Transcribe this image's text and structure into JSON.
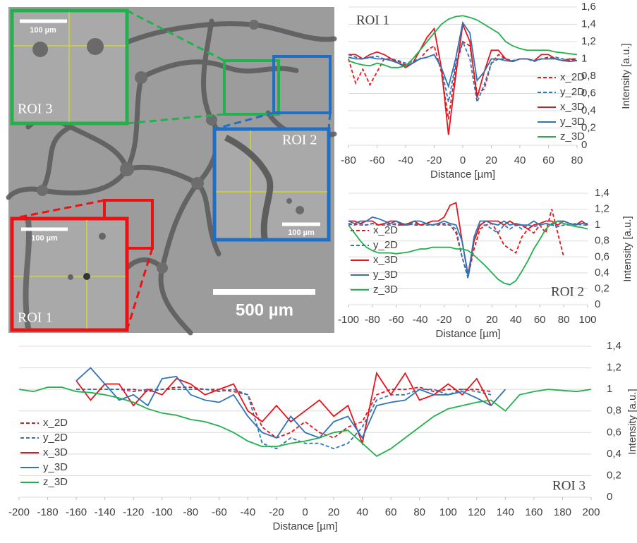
{
  "image": {
    "insets": [
      {
        "label": "ROI 3",
        "scale": "100 µm"
      },
      {
        "label": "ROI 2",
        "scale": "100 µm"
      },
      {
        "label": "ROI 1",
        "scale": "100 µm"
      }
    ],
    "scale_bar": "500 µm"
  },
  "chart_data": [
    {
      "type": "line",
      "annotation": "ROI 1",
      "xlabel": "Distance [µm]",
      "ylabel": "Intensity [a.u.]",
      "legend": "lower right",
      "grid": true,
      "xlim": [
        -80,
        80
      ],
      "xticks": [
        -80,
        -60,
        -40,
        -20,
        0,
        20,
        40,
        60,
        80
      ],
      "ylim": [
        0,
        1.6
      ],
      "yticks": [
        0,
        {
          "value": 0.2,
          "label": "0,2"
        },
        {
          "value": 0.4,
          "label": "0,4"
        },
        {
          "value": 0.6,
          "label": "0,6"
        },
        {
          "value": 0.8,
          "label": "0,8"
        },
        1,
        {
          "value": 1.2,
          "label": "1,2"
        },
        {
          "value": 1.4,
          "label": "1,4"
        },
        {
          "value": 1.6,
          "label": "1,6"
        }
      ],
      "x": [
        -80,
        -75,
        -70,
        -65,
        -60,
        -55,
        -50,
        -45,
        -40,
        -35,
        -30,
        -25,
        -20,
        -15,
        -10,
        -5,
        0,
        5,
        10,
        15,
        20,
        25,
        30,
        35,
        40,
        45,
        50,
        55,
        60,
        65,
        70,
        75,
        80
      ],
      "series": [
        {
          "name": "x_2D",
          "color": "#e8141c",
          "dash": true,
          "values": [
            1.0,
            0.72,
            0.88,
            0.7,
            0.85,
            1.0,
            1.0,
            0.97,
            0.93,
            0.95,
            1.0,
            1.1,
            1.15,
            0.85,
            0.3,
            0.9,
            1.2,
            1.15,
            0.6,
            0.65,
            0.95,
            1.05,
            1.0,
            0.97,
            1.0,
            1.0,
            0.98,
            1.0,
            1.02,
            1.0,
            0.98,
            1.0,
            1.0
          ]
        },
        {
          "name": "y_2D",
          "color": "#2e75b6",
          "dash": true,
          "values": [
            1.05,
            1.02,
            1.0,
            1.02,
            1.03,
            1.0,
            1.0,
            0.98,
            0.95,
            0.97,
            1.0,
            1.02,
            1.05,
            0.9,
            0.5,
            0.95,
            1.2,
            1.0,
            0.5,
            0.7,
            0.95,
            1.0,
            1.0,
            0.98,
            1.0,
            1.0,
            0.97,
            1.0,
            1.0,
            1.02,
            1.0,
            0.98,
            1.0
          ]
        },
        {
          "name": "x_3D",
          "color": "#e8141c",
          "dash": false,
          "values": [
            1.05,
            1.05,
            1.0,
            1.05,
            1.08,
            1.05,
            1.0,
            0.95,
            0.9,
            0.95,
            1.1,
            1.25,
            1.35,
            0.9,
            0.12,
            0.8,
            1.4,
            1.2,
            0.55,
            0.85,
            1.1,
            1.1,
            1.0,
            0.97,
            1.0,
            1.0,
            0.98,
            1.05,
            1.05,
            1.0,
            0.98,
            1.0,
            0.98
          ]
        },
        {
          "name": "y_3D",
          "color": "#2e75b6",
          "dash": false,
          "values": [
            1.02,
            1.0,
            1.0,
            1.02,
            1.0,
            1.0,
            0.98,
            0.95,
            0.92,
            0.95,
            1.0,
            1.02,
            1.05,
            0.9,
            0.68,
            1.0,
            1.42,
            1.3,
            0.75,
            0.85,
            1.0,
            1.0,
            0.98,
            0.97,
            1.0,
            1.0,
            0.98,
            1.0,
            1.0,
            1.0,
            0.98,
            0.97,
            0.98
          ]
        },
        {
          "name": "z_3D",
          "color": "#22b14c",
          "dash": false,
          "values": [
            0.98,
            0.95,
            0.93,
            0.92,
            0.95,
            0.93,
            0.9,
            0.9,
            0.92,
            1.0,
            1.1,
            1.2,
            1.3,
            1.4,
            1.46,
            1.49,
            1.5,
            1.48,
            1.45,
            1.4,
            1.35,
            1.3,
            1.2,
            1.15,
            1.12,
            1.1,
            1.1,
            1.1,
            1.1,
            1.08,
            1.07,
            1.06,
            1.05
          ]
        }
      ]
    },
    {
      "type": "line",
      "annotation": "ROI 2",
      "xlabel": "Distance [µm]",
      "ylabel": "Intensity [a.u.]",
      "legend": "left",
      "grid": true,
      "xlim": [
        -100,
        100
      ],
      "xticks": [
        -100,
        -80,
        -60,
        -40,
        -20,
        0,
        20,
        40,
        60,
        80,
        100
      ],
      "ylim": [
        0,
        1.4
      ],
      "yticks": [
        0,
        {
          "value": 0.2,
          "label": "0,2"
        },
        {
          "value": 0.4,
          "label": "0,4"
        },
        {
          "value": 0.6,
          "label": "0,6"
        },
        {
          "value": 0.8,
          "label": "0,8"
        },
        1,
        {
          "value": 1.2,
          "label": "1,2"
        },
        {
          "value": 1.4,
          "label": "1,4"
        }
      ],
      "x": [
        -100,
        -95,
        -90,
        -85,
        -80,
        -75,
        -70,
        -65,
        -60,
        -55,
        -50,
        -45,
        -40,
        -35,
        -30,
        -25,
        -20,
        -15,
        -10,
        -5,
        0,
        5,
        10,
        15,
        20,
        25,
        30,
        35,
        40,
        45,
        50,
        55,
        60,
        65,
        70,
        75,
        80,
        85,
        90,
        95,
        100
      ],
      "series": [
        {
          "name": "x_2D",
          "color": "#e8141c",
          "dash": true,
          "values": [
            1.02,
            1.0,
            1.02,
            1.0,
            1.02,
            1.0,
            1.0,
            1.02,
            1.0,
            1.0,
            1.02,
            1.0,
            1.0,
            1.02,
            1.0,
            1.0,
            1.02,
            1.0,
            0.9,
            0.6,
            0.35,
            0.7,
            0.95,
            1.0,
            1.02,
            0.9,
            0.75,
            0.7,
            0.65,
            0.85,
            0.95,
            0.9,
            1.0,
            0.9,
            1.2,
            0.9,
            0.6,
            null,
            null,
            null,
            null
          ]
        },
        {
          "name": "y_2D",
          "color": "#2e75b6",
          "dash": true,
          "values": [
            1.0,
            1.02,
            1.0,
            1.0,
            1.02,
            1.0,
            1.0,
            1.0,
            1.02,
            1.0,
            1.0,
            1.02,
            1.0,
            1.0,
            1.0,
            1.02,
            1.0,
            1.0,
            0.95,
            0.6,
            0.33,
            0.8,
            1.0,
            1.0,
            0.95,
            0.9,
            1.0,
            0.95,
            1.0,
            0.95,
            1.0,
            0.98,
            1.0,
            1.02,
            1.0,
            0.98,
            1.0,
            1.0,
            1.02,
            1.0,
            1.0
          ]
        },
        {
          "name": "x_3D",
          "color": "#e8141c",
          "dash": false,
          "values": [
            1.05,
            1.05,
            1.02,
            1.05,
            1.05,
            1.0,
            1.02,
            1.05,
            1.05,
            1.0,
            1.02,
            1.05,
            1.0,
            1.02,
            1.05,
            1.05,
            1.1,
            1.25,
            1.28,
            0.8,
            0.38,
            0.8,
            1.0,
            1.05,
            1.05,
            1.05,
            1.0,
            1.05,
            1.0,
            1.0,
            0.95,
            1.0,
            1.02,
            1.05,
            1.05,
            1.0,
            1.05,
            1.02,
            1.0,
            1.05,
            1.0
          ]
        },
        {
          "name": "y_3D",
          "color": "#2e75b6",
          "dash": false,
          "values": [
            1.05,
            1.02,
            1.05,
            1.05,
            1.1,
            1.08,
            1.05,
            1.02,
            1.05,
            1.02,
            1.0,
            1.05,
            1.05,
            1.02,
            1.0,
            1.02,
            1.05,
            1.02,
            1.0,
            0.8,
            0.36,
            0.85,
            1.05,
            1.05,
            1.02,
            1.0,
            1.05,
            1.0,
            1.02,
            1.0,
            1.0,
            1.05,
            1.0,
            1.02,
            1.0,
            1.05,
            1.05,
            1.02,
            1.0,
            1.02,
            1.02
          ]
        },
        {
          "name": "z_3D",
          "color": "#22b14c",
          "dash": false,
          "values": [
            1.0,
            0.9,
            0.8,
            0.72,
            0.68,
            0.65,
            0.65,
            0.65,
            0.64,
            0.65,
            0.66,
            0.68,
            0.7,
            0.7,
            0.72,
            0.72,
            0.72,
            0.72,
            0.7,
            0.7,
            0.68,
            0.62,
            0.55,
            0.48,
            0.4,
            0.32,
            0.27,
            0.25,
            0.3,
            0.42,
            0.55,
            0.7,
            0.82,
            0.95,
            1.02,
            1.05,
            1.02,
            1.0,
            0.98,
            0.97,
            0.95
          ]
        }
      ]
    },
    {
      "type": "line",
      "annotation": "ROI 3",
      "xlabel": "Distance [µm]",
      "ylabel": "Intensity [a.u.]",
      "legend": "left",
      "grid": true,
      "xlim": [
        -200,
        200
      ],
      "xticks": [
        -200,
        -180,
        -160,
        -140,
        -120,
        -100,
        -80,
        -60,
        -40,
        -20,
        0,
        20,
        40,
        60,
        80,
        100,
        120,
        140,
        160,
        180,
        200
      ],
      "ylim": [
        0,
        1.4
      ],
      "yticks": [
        0,
        {
          "value": 0.2,
          "label": "0,2"
        },
        {
          "value": 0.4,
          "label": "0,4"
        },
        {
          "value": 0.6,
          "label": "0,6"
        },
        {
          "value": 0.8,
          "label": "0,8"
        },
        1,
        {
          "value": 1.2,
          "label": "1,2"
        },
        {
          "value": 1.4,
          "label": "1,4"
        }
      ],
      "x": [
        -200,
        -190,
        -180,
        -170,
        -160,
        -150,
        -140,
        -130,
        -120,
        -110,
        -100,
        -90,
        -80,
        -70,
        -60,
        -50,
        -40,
        -30,
        -20,
        -10,
        0,
        10,
        20,
        30,
        40,
        50,
        60,
        70,
        80,
        90,
        100,
        110,
        120,
        130,
        140,
        150,
        160,
        170,
        180,
        190,
        200
      ],
      "series": [
        {
          "name": "x_2D",
          "color": "#e8141c",
          "dash": true,
          "values": [
            null,
            null,
            null,
            null,
            1.0,
            1.0,
            1.0,
            1.0,
            1.0,
            0.98,
            1.0,
            1.02,
            1.02,
            1.0,
            1.0,
            0.98,
            0.95,
            0.65,
            0.55,
            0.6,
            0.7,
            0.6,
            0.55,
            0.65,
            0.7,
            0.95,
            1.0,
            1.0,
            1.02,
            0.98,
            1.0,
            1.0,
            1.0,
            0.98,
            null,
            null,
            null,
            null,
            null,
            null,
            null
          ]
        },
        {
          "name": "y_2D",
          "color": "#2e75b6",
          "dash": true,
          "values": [
            null,
            null,
            null,
            null,
            1.0,
            1.0,
            1.0,
            1.0,
            0.98,
            1.0,
            1.0,
            1.0,
            1.0,
            1.0,
            0.98,
            1.0,
            0.95,
            0.5,
            0.45,
            0.55,
            0.5,
            0.5,
            0.45,
            0.5,
            0.65,
            0.9,
            0.95,
            0.95,
            1.0,
            1.0,
            0.95,
            1.0,
            0.98,
            0.95,
            null,
            null,
            null,
            null,
            null,
            null,
            null
          ]
        },
        {
          "name": "x_3D",
          "color": "#e8141c",
          "dash": false,
          "values": [
            null,
            null,
            null,
            null,
            1.08,
            0.9,
            1.05,
            1.05,
            0.85,
            1.0,
            0.95,
            1.1,
            1.05,
            0.95,
            1.0,
            1.05,
            0.8,
            0.7,
            0.85,
            0.7,
            0.8,
            0.9,
            0.75,
            0.85,
            0.5,
            1.15,
            0.95,
            1.15,
            0.9,
            0.95,
            1.05,
            0.95,
            1.1,
            0.85,
            null,
            null,
            null,
            null,
            null,
            null,
            null
          ]
        },
        {
          "name": "y_3D",
          "color": "#2e75b6",
          "dash": false,
          "values": [
            null,
            null,
            null,
            null,
            1.08,
            1.2,
            1.05,
            0.9,
            0.95,
            0.85,
            1.1,
            1.12,
            0.95,
            0.9,
            0.88,
            0.95,
            0.75,
            0.6,
            0.55,
            0.75,
            0.6,
            0.55,
            0.7,
            0.75,
            0.55,
            0.85,
            0.88,
            0.9,
            1.0,
            0.95,
            0.95,
            0.98,
            0.92,
            0.85,
            1.0,
            null,
            null,
            null,
            null,
            null,
            null
          ]
        },
        {
          "name": "z_3D",
          "color": "#22b14c",
          "dash": false,
          "values": [
            1.0,
            0.98,
            1.02,
            1.02,
            0.98,
            0.97,
            0.95,
            0.92,
            0.88,
            0.82,
            0.78,
            0.76,
            0.72,
            0.7,
            0.66,
            0.6,
            0.52,
            0.47,
            0.47,
            0.5,
            0.52,
            0.55,
            0.6,
            0.62,
            0.5,
            0.38,
            0.45,
            0.55,
            0.65,
            0.75,
            0.82,
            0.85,
            0.88,
            0.9,
            0.8,
            0.95,
            0.98,
            1.0,
            0.99,
            0.98,
            1.0
          ]
        }
      ]
    }
  ]
}
